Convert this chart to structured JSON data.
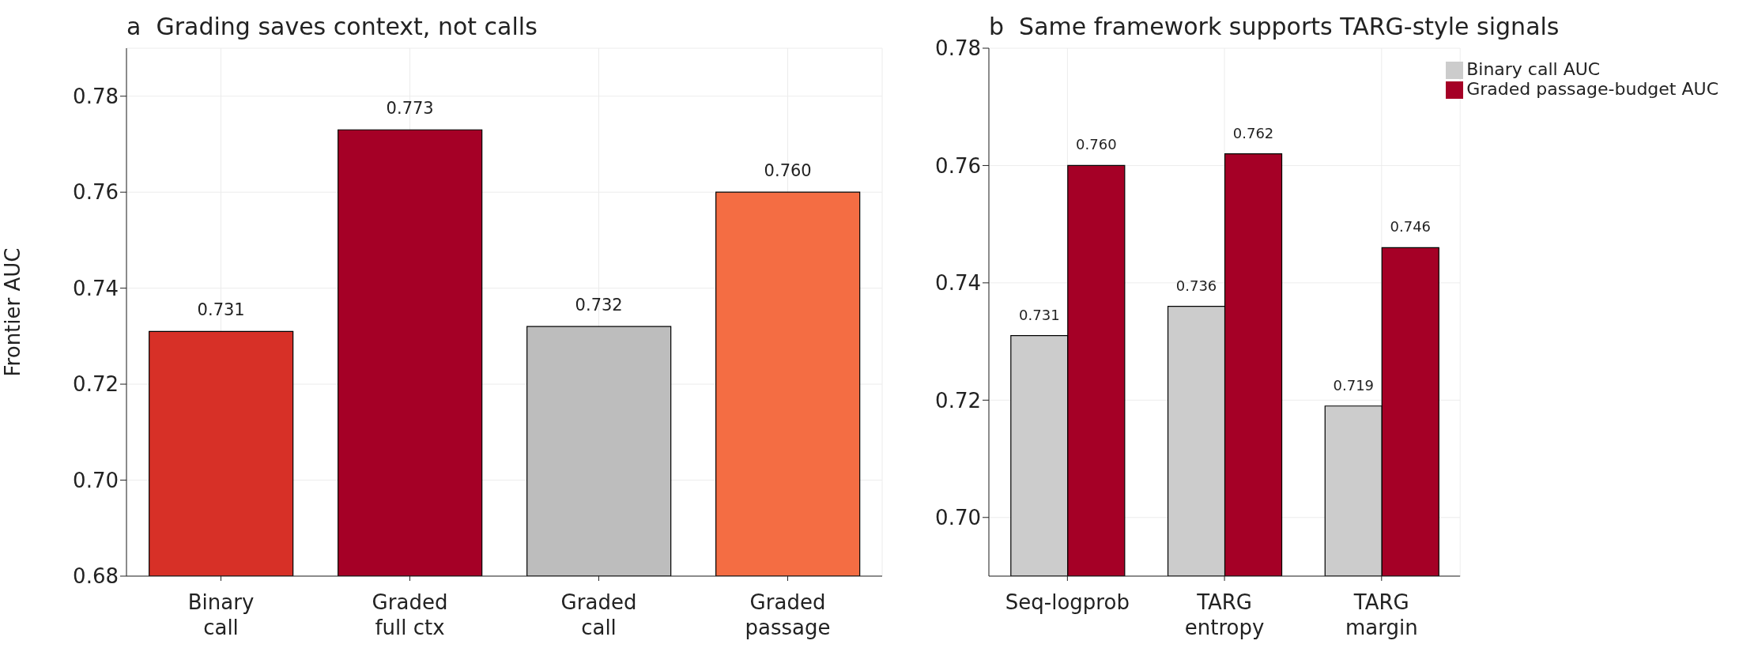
{
  "chart_data": [
    {
      "type": "bar",
      "title": "a  Grading saves context, not calls",
      "ylabel": "Frontier AUC",
      "categories": [
        "Binary call",
        "Graded full ctx",
        "Graded call",
        "Graded passage"
      ],
      "values": [
        0.731,
        0.773,
        0.732,
        0.76
      ],
      "value_labels": [
        "0.731",
        "0.773",
        "0.732",
        "0.760"
      ],
      "colors": [
        "#d73027",
        "#a50026",
        "#bdbdbd",
        "#f46d43"
      ],
      "ylim": [
        0.68,
        0.79
      ],
      "yticks": [
        0.68,
        {
          "value": 0.7,
          "label": "0.70"
        },
        0.72,
        0.74,
        0.76,
        0.78
      ],
      "grid": true,
      "legend": false
    },
    {
      "type": "bar",
      "title": "b  Same framework supports TARG-style signals",
      "categories": [
        "Seq-logprob",
        "TARG entropy",
        "TARG margin"
      ],
      "series": [
        {
          "name": "Binary call AUC",
          "color": "#cccccc",
          "values": [
            0.731,
            0.736,
            0.719
          ],
          "value_labels": [
            "0.731",
            "0.736",
            "0.719"
          ]
        },
        {
          "name": "Graded passage-budget AUC",
          "color": "#a50026",
          "values": [
            0.76,
            0.762,
            0.746
          ],
          "value_labels": [
            "0.760",
            "0.762",
            "0.746"
          ]
        }
      ],
      "ylim": [
        0.69,
        0.78
      ],
      "yticks": [
        {
          "value": 0.7,
          "label": "0.70"
        },
        0.72,
        0.74,
        0.76,
        0.78
      ],
      "grid": true,
      "legend": "top right"
    }
  ]
}
